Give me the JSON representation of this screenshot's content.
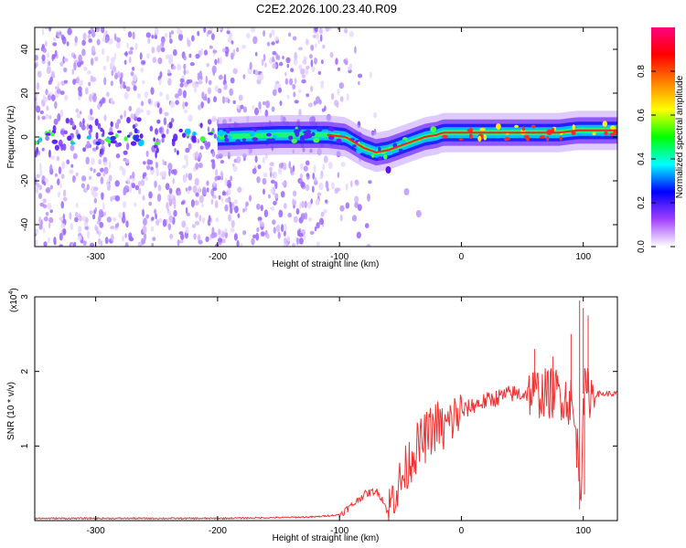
{
  "title": "C2E2.2026.100.23.40.R09",
  "chart_data": [
    {
      "type": "heatmap",
      "title": "C2E2.2026.100.23.40.R09",
      "xlabel": "Height of straight line (km)",
      "ylabel": "Frequency (Hz)",
      "xlim": [
        -350,
        128
      ],
      "ylim": [
        -50,
        50
      ],
      "xticks": [
        -300,
        -200,
        -100,
        0,
        100
      ],
      "yticks": [
        -40,
        -20,
        0,
        20,
        40
      ],
      "colorbar": {
        "label": "Normalized spectral amplitude",
        "range": [
          0,
          1
        ],
        "ticks": [
          0.0,
          0.2,
          0.4,
          0.6,
          0.8
        ],
        "tick_labels": [
          "0.0",
          "0.2",
          "0.4",
          "0.6",
          "0.8"
        ],
        "colors": [
          "#ffffff",
          "#a040ff",
          "#0000ff",
          "#00ffff",
          "#00ff00",
          "#ffff00",
          "#ff8000",
          "#ff0000",
          "#ff0080"
        ]
      },
      "ridge": {
        "x": [
          -350,
          -300,
          -250,
          -200,
          -150,
          -110,
          -95,
          -80,
          -70,
          -60,
          -50,
          -40,
          -30,
          -20,
          -15,
          -10,
          0,
          20,
          50,
          80,
          95,
          110,
          128
        ],
        "y": [
          0,
          0,
          0,
          0,
          1,
          1,
          0,
          -5,
          -7,
          -6,
          -4,
          -2,
          0,
          1,
          2,
          2,
          2,
          2,
          2,
          2,
          3,
          3,
          3
        ]
      },
      "noise_region_x": [
        -350,
        -110
      ],
      "faint_branch": {
        "x": [
          -60,
          -45,
          -35
        ],
        "y": [
          -15,
          -25,
          -35
        ]
      }
    },
    {
      "type": "line",
      "xlabel": "Height of straight line (km)",
      "ylabel": "SNR (10 * v/v)",
      "y_scale_label": "(x10",
      "y_scale_exp": "4",
      "xlim": [
        -350,
        128
      ],
      "ylim": [
        0,
        3
      ],
      "xticks": [
        -300,
        -200,
        -100,
        0,
        100
      ],
      "yticks": [
        1,
        2,
        3
      ],
      "color": "#ee3333",
      "series": [
        {
          "name": "SNR",
          "x": [
            -350,
            -300,
            -250,
            -200,
            -150,
            -120,
            -100,
            -90,
            -80,
            -70,
            -65,
            -60,
            -55,
            -50,
            -45,
            -40,
            -35,
            -30,
            -25,
            -20,
            -15,
            -10,
            -5,
            0,
            10,
            20,
            30,
            40,
            50,
            60,
            70,
            80,
            85,
            90,
            95,
            98,
            100,
            105,
            110,
            128
          ],
          "y": [
            0.03,
            0.03,
            0.03,
            0.03,
            0.04,
            0.05,
            0.08,
            0.2,
            0.35,
            0.4,
            0.3,
            0.1,
            0.4,
            0.5,
            0.7,
            0.9,
            1.0,
            1.1,
            1.2,
            1.3,
            1.2,
            1.3,
            1.4,
            1.45,
            1.55,
            1.6,
            1.65,
            1.7,
            1.7,
            1.72,
            1.7,
            1.72,
            1.65,
            1.6,
            1.0,
            0.4,
            1.7,
            1.72,
            1.7,
            1.7
          ]
        }
      ],
      "spikes": [
        {
          "x": 60,
          "y": 2.3
        },
        {
          "x": 75,
          "y": 2.2
        },
        {
          "x": 90,
          "y": 2.5
        },
        {
          "x": 97,
          "y": 2.95
        },
        {
          "x": 100,
          "y": 2.85
        },
        {
          "x": 104,
          "y": 2.75
        },
        {
          "x": 97,
          "y": 0.15
        },
        {
          "x": 101,
          "y": 0.35
        }
      ]
    }
  ]
}
